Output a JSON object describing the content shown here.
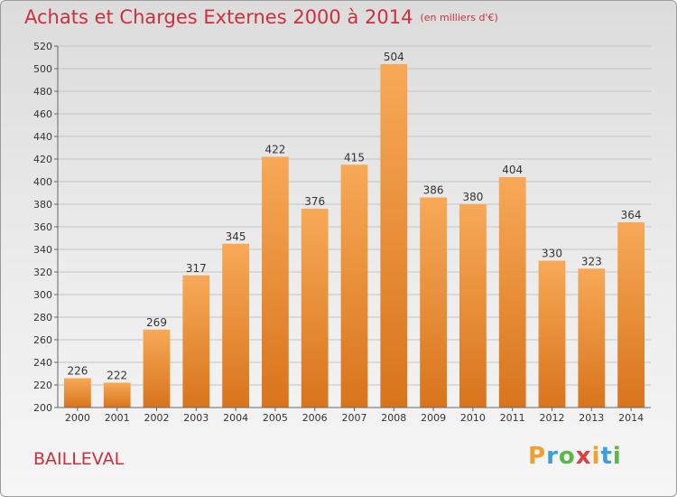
{
  "header": {
    "title": "Achats et Charges Externes 2000 à 2014",
    "unit": "(en milliers d'€)"
  },
  "footer": {
    "commune": "BAILLEVAL",
    "logo_letters": [
      "P",
      "r",
      "o",
      "x",
      "i",
      "t",
      "i"
    ],
    "logo_colors": [
      "#f0a030",
      "#3aa0dc",
      "#58b848",
      "#e04040",
      "#f0a030",
      "#3aa0dc",
      "#58b848"
    ]
  },
  "colors": {
    "bar_top": "#f7a957",
    "bar_bottom": "#d8741c",
    "text_accent": "#c8323c"
  },
  "chart_data": {
    "type": "bar",
    "title": "Achats et Charges Externes 2000 à 2014",
    "xlabel": "",
    "ylabel": "",
    "categories": [
      "2000",
      "2001",
      "2002",
      "2003",
      "2004",
      "2005",
      "2006",
      "2007",
      "2008",
      "2009",
      "2010",
      "2011",
      "2012",
      "2013",
      "2014"
    ],
    "values": [
      226,
      222,
      269,
      317,
      345,
      422,
      376,
      415,
      504,
      386,
      380,
      404,
      330,
      323,
      364
    ],
    "ylim": [
      200,
      520
    ],
    "yticks": [
      200,
      220,
      240,
      260,
      280,
      300,
      320,
      340,
      360,
      380,
      400,
      420,
      440,
      460,
      480,
      500,
      520
    ],
    "grid": true
  }
}
